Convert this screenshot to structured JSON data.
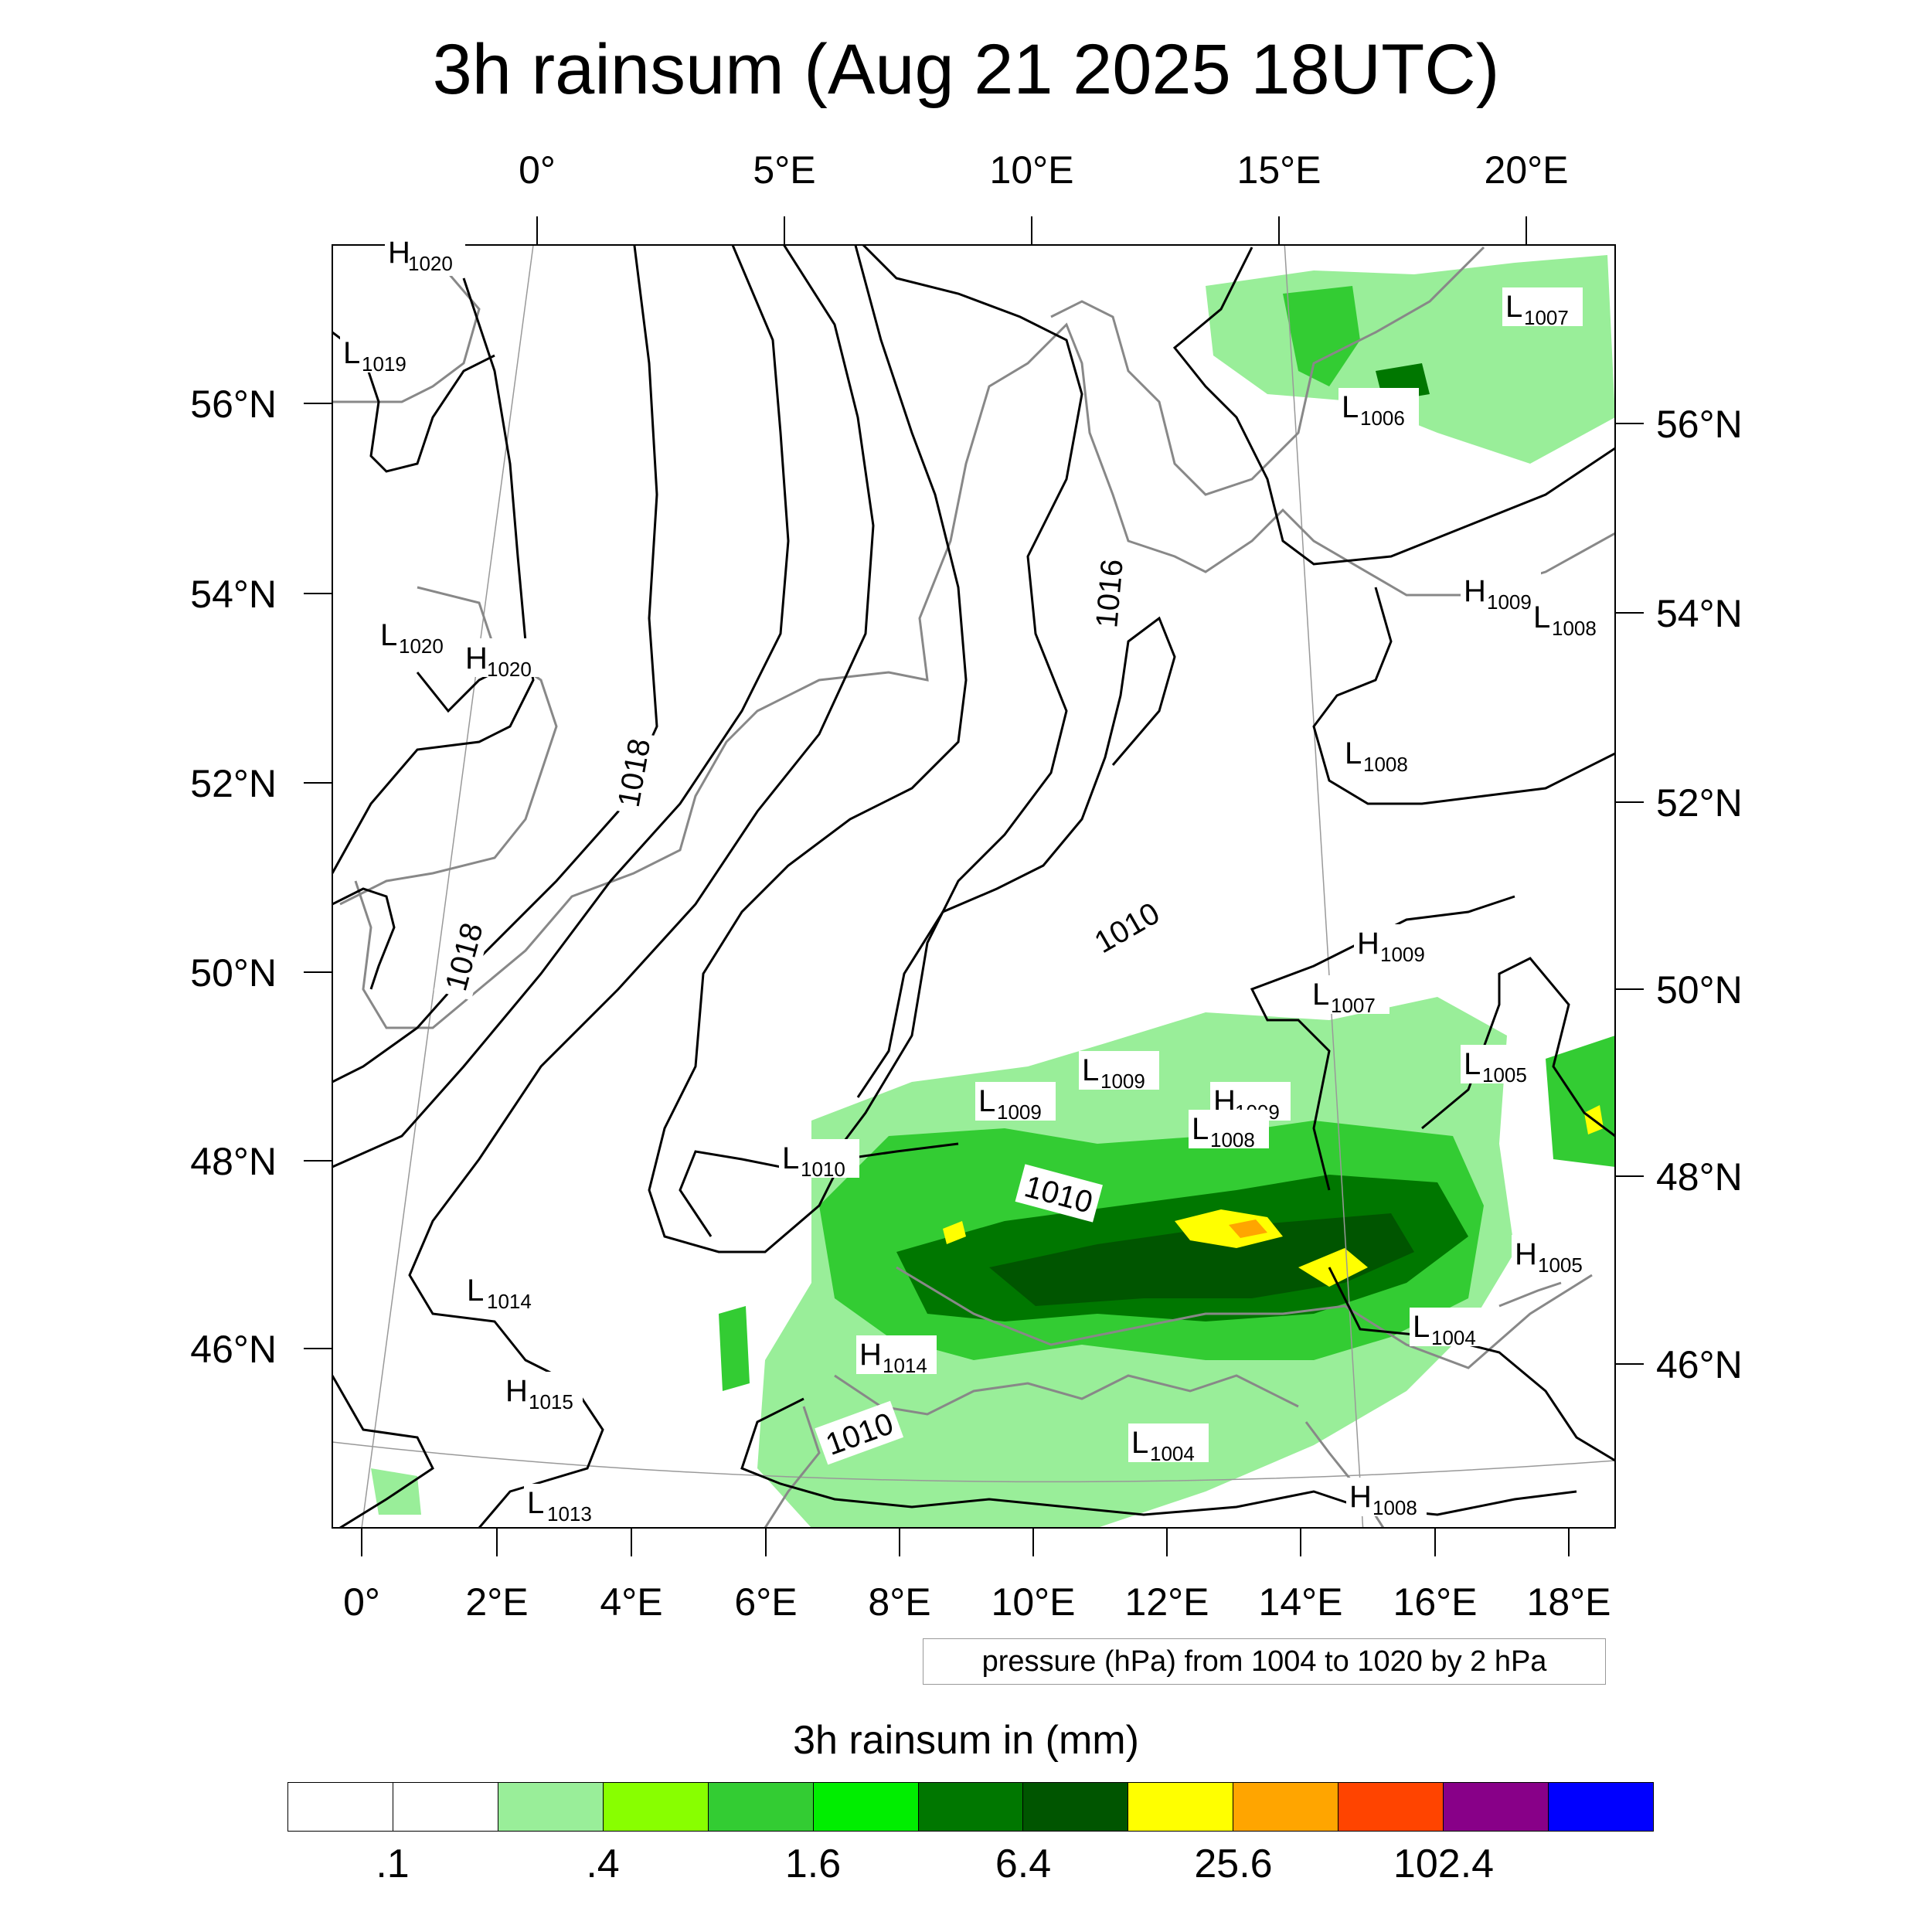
{
  "title": "3h rainsum (Aug 21 2025 18UTC)",
  "map": {
    "top_lon_labels": [
      "0°",
      "5°E",
      "10°E",
      "15°E",
      "20°E"
    ],
    "bottom_lon_labels": [
      "0°",
      "2°E",
      "4°E",
      "6°E",
      "8°E",
      "10°E",
      "12°E",
      "14°E",
      "16°E",
      "18°E"
    ],
    "left_lat_labels": [
      "56°N",
      "54°N",
      "52°N",
      "50°N",
      "48°N",
      "46°N"
    ],
    "right_lat_labels": [
      "56°N",
      "54°N",
      "52°N",
      "50°N",
      "48°N",
      "46°N"
    ],
    "pressure_centers": [
      {
        "type": "H",
        "value": "1020"
      },
      {
        "type": "L",
        "value": "1019"
      },
      {
        "type": "L",
        "value": "1020"
      },
      {
        "type": "H",
        "value": "1020"
      },
      {
        "type": "L",
        "value": "1014"
      },
      {
        "type": "H",
        "value": "1015"
      },
      {
        "type": "L",
        "value": "1013"
      },
      {
        "type": "L",
        "value": "1010"
      },
      {
        "type": "H",
        "value": "1014"
      },
      {
        "type": "L",
        "value": "1009"
      },
      {
        "type": "L",
        "value": "1009"
      },
      {
        "type": "H",
        "value": "1009"
      },
      {
        "type": "L",
        "value": "1008"
      },
      {
        "type": "L",
        "value": "1007"
      },
      {
        "type": "H",
        "value": "1009"
      },
      {
        "type": "L",
        "value": "1005"
      },
      {
        "type": "H",
        "value": "1005"
      },
      {
        "type": "L",
        "value": "1004"
      },
      {
        "type": "L",
        "value": "1004"
      },
      {
        "type": "H",
        "value": "1008"
      },
      {
        "type": "L",
        "value": "1008"
      },
      {
        "type": "L",
        "value": "1007"
      },
      {
        "type": "L",
        "value": "1006"
      },
      {
        "type": "H",
        "value": "1009"
      },
      {
        "type": "L",
        "value": "1008"
      }
    ],
    "isobar_labels": [
      "1018",
      "1018",
      "1016",
      "1010",
      "1010",
      "1010"
    ],
    "colors": {
      "coast": "#888888",
      "isobar": "#000000",
      "grid": "#999999",
      "rain_light": "#99ee99",
      "rain_mid": "#33cc33",
      "rain_bright": "#00ee00",
      "rain_dark": "#007700",
      "rain_darker": "#005500",
      "rain_yellow": "#ffff00",
      "rain_orange": "#ffa500"
    }
  },
  "info_box": "pressure (hPa) from 1004 to 1020 by 2 hPa",
  "colorbar": {
    "title": "3h rainsum in (mm)",
    "colors": [
      "#ffffff",
      "#ffffff",
      "#99ee99",
      "#88ff00",
      "#33cc33",
      "#00ee00",
      "#007700",
      "#005500",
      "#ffff00",
      "#ffa500",
      "#ff4400",
      "#880088",
      "#0000ff"
    ],
    "labels": [
      ".1",
      ".4",
      "1.6",
      "6.4",
      "25.6",
      "102.4"
    ]
  }
}
